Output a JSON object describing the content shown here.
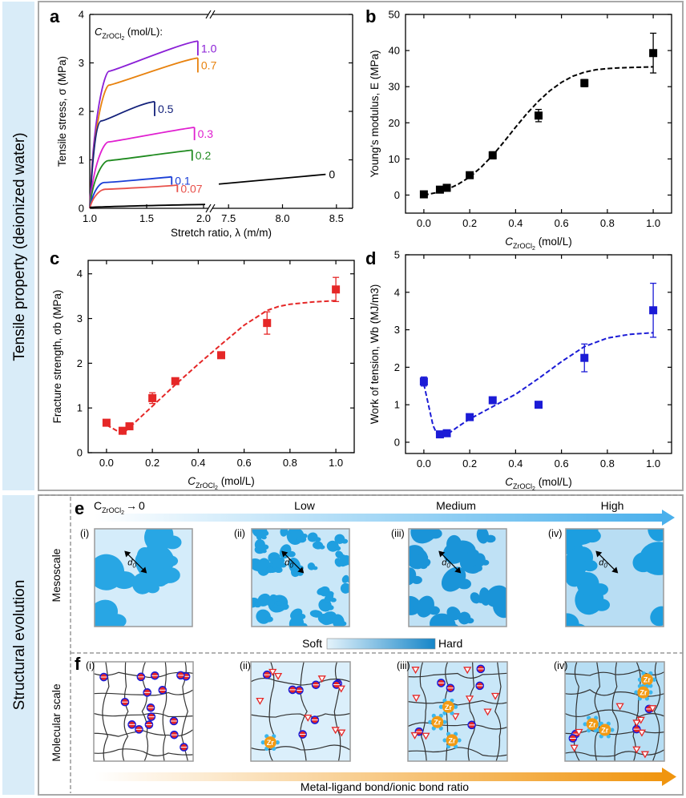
{
  "colors": {
    "band_bg": "#d9ecf8",
    "frame": "#a9a9a9",
    "red": "#e52727",
    "blue": "#1b1bd6",
    "purple": "#8a1fd6",
    "orange": "#e8820e",
    "navy": "#12207a",
    "magenta": "#e01fd0",
    "green": "#1f8a1f",
    "blue2": "#1a3ed6",
    "lightred": "#e8504a",
    "domain_light": "#d2ebf9",
    "domain_dark": "#1c9ee0"
  },
  "sidebar": {
    "top_label": "Tensile property (deionized water)",
    "mid_label": "Structural evolution",
    "meso_label": "Mesoscale",
    "mol_label": "Molecular scale"
  },
  "chart_data": [
    {
      "panel": "a",
      "type": "line",
      "xlabel": "Stretch ratio, λ (m/m)",
      "ylabel": "Tensile stress, σ (MPa)",
      "legend_title": "C_ZrOCl2 (mol/L):",
      "legend_title_parts": [
        "C",
        "ZrOCl",
        "2",
        " (mol/L):"
      ],
      "x_ticks_left": [
        "1.0",
        "1.5",
        "2.0"
      ],
      "x_ticks_right": [
        "7.5",
        "8.0",
        "8.5"
      ],
      "y_ticks": [
        "0",
        "1",
        "2",
        "3",
        "4"
      ],
      "xlim_left": [
        1.0,
        2.0
      ],
      "xlim_right": [
        7.35,
        8.65
      ],
      "ylim": [
        0,
        4
      ],
      "series": [
        {
          "name": "1.0",
          "end_x": 1.95,
          "max_y": 3.45,
          "color": "#8a1fd6"
        },
        {
          "name": "0.7",
          "end_x": 1.95,
          "max_y": 3.1,
          "color": "#e8820e"
        },
        {
          "name": "0.5",
          "end_x": 1.57,
          "max_y": 2.2,
          "color": "#12207a"
        },
        {
          "name": "0.3",
          "end_x": 1.92,
          "max_y": 1.67,
          "color": "#e01fd0"
        },
        {
          "name": "0.2",
          "end_x": 1.9,
          "max_y": 1.2,
          "color": "#1f8a1f"
        },
        {
          "name": "0.1",
          "end_x": 1.72,
          "max_y": 0.65,
          "color": "#1a3ed6"
        },
        {
          "name": "0.07",
          "end_x": 1.77,
          "max_y": 0.48,
          "color": "#e8504a"
        },
        {
          "name": "0",
          "end_x": 8.4,
          "max_y": 0.7,
          "color": "#000000"
        }
      ]
    },
    {
      "panel": "b",
      "type": "scatter",
      "xlabel": "C_ZrOCl2 (mol/L)",
      "xlabel_parts": [
        "C",
        "ZrOCl",
        "2",
        " (mol/L)"
      ],
      "ylabel": "Young's modulus, E (MPa)",
      "x": [
        0,
        0.07,
        0.1,
        0.2,
        0.3,
        0.5,
        0.7,
        1.0
      ],
      "y": [
        0.2,
        1.5,
        2.0,
        5.5,
        11.0,
        22.0,
        31.0,
        39.3
      ],
      "err": [
        0.3,
        0.5,
        0.5,
        0.8,
        1.0,
        1.7,
        1.0,
        5.5
      ],
      "fit_x": [
        0,
        0.05,
        0.1,
        0.15,
        0.2,
        0.25,
        0.3,
        0.35,
        0.4,
        0.45,
        0.5,
        0.55,
        0.6,
        0.65,
        0.7,
        0.75,
        0.8,
        0.85,
        0.9,
        0.95,
        1.0
      ],
      "fit_y": [
        0,
        0.6,
        1.5,
        3.0,
        5.0,
        7.7,
        11.0,
        14.8,
        18.8,
        22.6,
        26.0,
        28.9,
        31.2,
        32.9,
        34.0,
        34.7,
        35.0,
        35.2,
        35.3,
        35.4,
        35.5
      ],
      "x_ticks": [
        "0.0",
        "0.2",
        "0.4",
        "0.6",
        "0.8",
        "1.0"
      ],
      "y_ticks": [
        "0",
        "10",
        "20",
        "30",
        "40",
        "50"
      ],
      "xlim": [
        -0.08,
        1.08
      ],
      "ylim": [
        -5,
        50
      ],
      "color": "#000000"
    },
    {
      "panel": "c",
      "type": "scatter",
      "xlabel": "C_ZrOCl2 (mol/L)",
      "xlabel_parts": [
        "C",
        "ZrOCl",
        "2",
        " (mol/L)"
      ],
      "ylabel": "Fracture strength, σb (MPa)",
      "x": [
        0,
        0.07,
        0.1,
        0.2,
        0.3,
        0.5,
        0.7,
        1.0
      ],
      "y": [
        0.67,
        0.49,
        0.59,
        1.22,
        1.6,
        2.18,
        2.9,
        3.65
      ],
      "err": [
        0.05,
        0.05,
        0.05,
        0.12,
        0.05,
        0.05,
        0.25,
        0.27
      ],
      "fit_x": [
        0.0,
        0.07,
        0.2,
        0.3,
        0.4,
        0.5,
        0.6,
        0.7,
        0.75,
        0.8,
        0.9,
        1.0
      ],
      "fit_y": [
        0.62,
        0.42,
        1.04,
        1.52,
        1.98,
        2.42,
        2.85,
        3.18,
        3.27,
        3.32,
        3.37,
        3.4
      ],
      "x_ticks": [
        "0.0",
        "0.2",
        "0.4",
        "0.6",
        "0.8",
        "1.0"
      ],
      "y_ticks": [
        "0",
        "1",
        "2",
        "3",
        "4"
      ],
      "xlim": [
        -0.08,
        1.08
      ],
      "ylim": [
        0,
        4.3
      ],
      "color": "#e52727"
    },
    {
      "panel": "d",
      "type": "scatter",
      "xlabel": "C_ZrOCl2 (mol/L)",
      "xlabel_parts": [
        "C",
        "ZrOCl",
        "2",
        " (mol/L)"
      ],
      "ylabel": "Work of tension, Wb (MJ/m3)",
      "x": [
        0,
        0.07,
        0.1,
        0.2,
        0.3,
        0.5,
        0.7,
        1.0
      ],
      "y": [
        1.62,
        0.21,
        0.24,
        0.67,
        1.12,
        1.0,
        2.25,
        3.52
      ],
      "err": [
        0.12,
        0.05,
        0.05,
        0.06,
        0.06,
        0.05,
        0.37,
        0.72
      ],
      "fit_x": [
        0.0,
        0.02,
        0.04,
        0.06,
        0.08,
        0.1,
        0.15,
        0.2,
        0.3,
        0.4,
        0.5,
        0.6,
        0.7,
        0.8,
        0.9,
        1.0
      ],
      "fit_y": [
        1.55,
        1.0,
        0.45,
        0.18,
        0.14,
        0.2,
        0.42,
        0.62,
        0.95,
        1.28,
        1.7,
        2.15,
        2.55,
        2.78,
        2.88,
        2.92
      ],
      "x_ticks": [
        "0.0",
        "0.2",
        "0.4",
        "0.6",
        "0.8",
        "1.0"
      ],
      "y_ticks": [
        "0",
        "1",
        "2",
        "3",
        "4",
        "5"
      ],
      "xlim": [
        -0.08,
        1.08
      ],
      "ylim": [
        -0.3,
        5
      ],
      "color": "#1b1bd6"
    }
  ],
  "panel_letters": {
    "a": "a",
    "b": "b",
    "c": "c",
    "d": "d",
    "e": "e",
    "f": "f"
  },
  "structural": {
    "conc_label_parts": [
      "C",
      "ZrOCl",
      "2",
      "→",
      "0"
    ],
    "levels": [
      "Low",
      "Medium",
      "High"
    ],
    "roman": [
      "(i)",
      "(ii)",
      "(iii)",
      "(iv)"
    ],
    "domain_symbol": "d",
    "domain_sub": "0",
    "soft_label": "Soft",
    "hard_label": "Hard",
    "zr_label": "Zr",
    "bond_ratio_label": "Metal-ligand bond/ionic bond ratio"
  }
}
